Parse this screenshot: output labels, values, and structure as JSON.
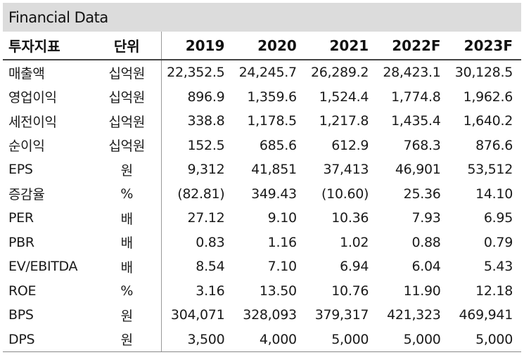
{
  "title": "Financial Data",
  "columns": [
    "투자지표",
    "단위",
    "2019",
    "2020",
    "2021",
    "2022F",
    "2023F"
  ],
  "rows": [
    {
      "name": "매출액",
      "unit": "십억원",
      "values": [
        "22,352.5",
        "24,245.7",
        "26,289.2",
        "28,423.1",
        "30,128.5"
      ]
    },
    {
      "name": "영업이익",
      "unit": "십억원",
      "values": [
        "896.9",
        "1,359.6",
        "1,524.4",
        "1,774.8",
        "1,962.6"
      ]
    },
    {
      "name": "세전이익",
      "unit": "십억원",
      "values": [
        "338.8",
        "1,178.5",
        "1,217.8",
        "1,435.4",
        "1,640.2"
      ]
    },
    {
      "name": "순이익",
      "unit": "십억원",
      "values": [
        "152.5",
        "685.6",
        "612.9",
        "768.3",
        "876.6"
      ]
    },
    {
      "name": "EPS",
      "unit": "원",
      "values": [
        "9,312",
        "41,851",
        "37,413",
        "46,901",
        "53,512"
      ]
    },
    {
      "name": "증감율",
      "unit": "%",
      "values": [
        "(82.81)",
        "349.43",
        "(10.60)",
        "25.36",
        "14.10"
      ]
    },
    {
      "name": "PER",
      "unit": "배",
      "values": [
        "27.12",
        "9.10",
        "10.36",
        "7.93",
        "6.95"
      ]
    },
    {
      "name": "PBR",
      "unit": "배",
      "values": [
        "0.83",
        "1.16",
        "1.02",
        "0.88",
        "0.79"
      ]
    },
    {
      "name": "EV/EBITDA",
      "unit": "배",
      "values": [
        "8.54",
        "7.10",
        "6.94",
        "6.04",
        "5.43"
      ]
    },
    {
      "name": "ROE",
      "unit": "%",
      "values": [
        "3.16",
        "13.50",
        "10.76",
        "11.90",
        "12.18"
      ]
    },
    {
      "name": "BPS",
      "unit": "원",
      "values": [
        "304,071",
        "328,093",
        "379,317",
        "421,323",
        "469,941"
      ]
    },
    {
      "name": "DPS",
      "unit": "원",
      "values": [
        "3,500",
        "4,000",
        "5,000",
        "5,000",
        "5,000"
      ]
    }
  ]
}
